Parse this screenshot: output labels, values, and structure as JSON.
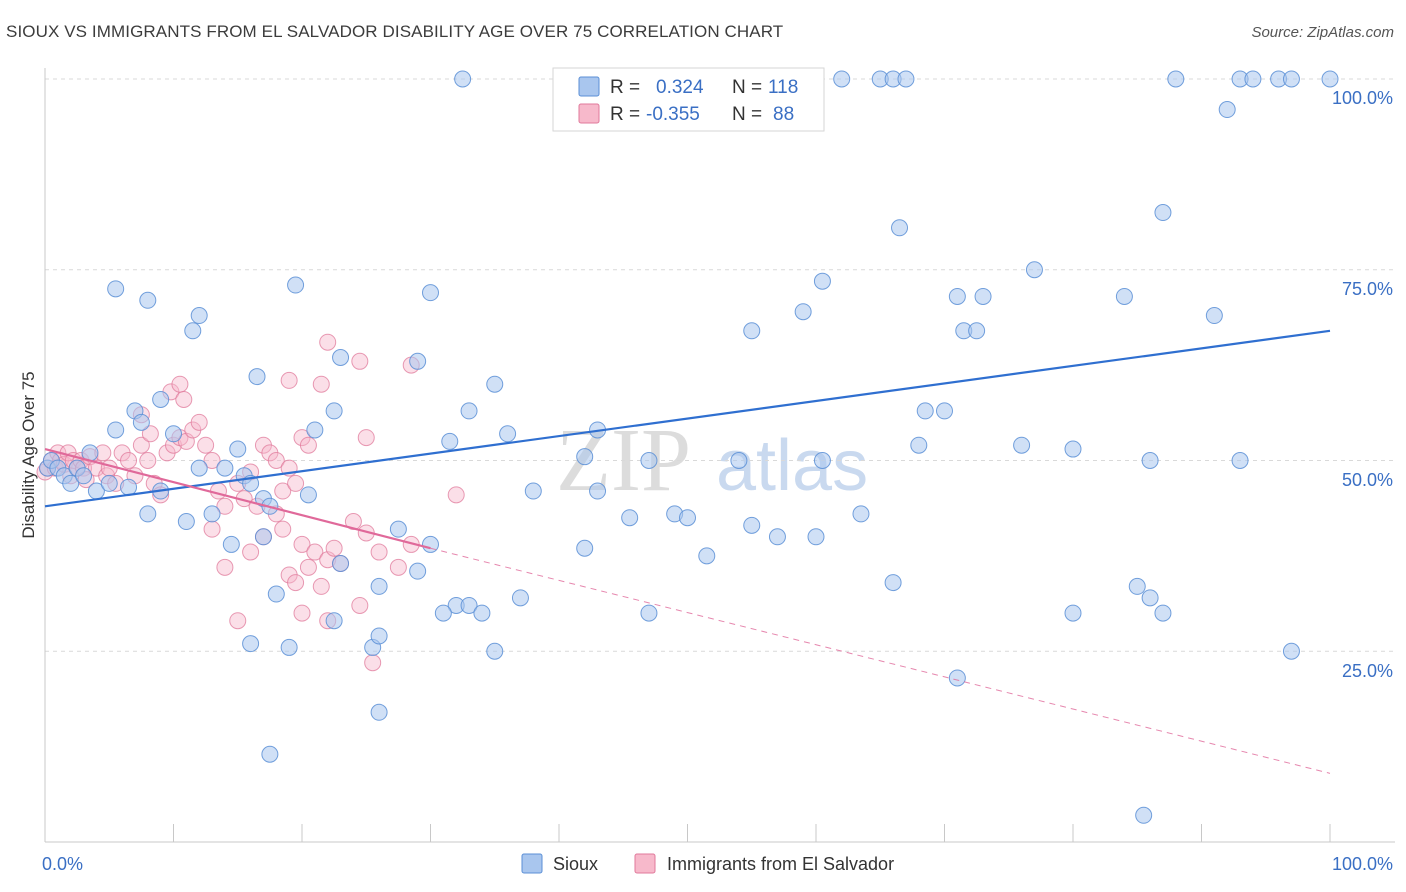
{
  "title": "SIOUX VS IMMIGRANTS FROM EL SALVADOR DISABILITY AGE OVER 75 CORRELATION CHART",
  "source": "Source: ZipAtlas.com",
  "watermark": {
    "zip": "ZIP",
    "atlas": "atlas"
  },
  "legend_box": {
    "rows": [
      {
        "r_label": "R =",
        "r_value": "0.324",
        "n_label": "N =",
        "n_value": "118",
        "color": "#a9c6ee",
        "stroke": "#5b8fd6"
      },
      {
        "r_label": "R =",
        "r_value": "-0.355",
        "n_label": "N =",
        "n_value": "88",
        "color": "#f7b9cb",
        "stroke": "#e0799b"
      }
    ]
  },
  "bottom_legend": [
    {
      "label": "Sioux",
      "color": "#a9c6ee",
      "stroke": "#5b8fd6"
    },
    {
      "label": "Immigrants from El Salvador",
      "color": "#f7b9cb",
      "stroke": "#e0799b"
    }
  ],
  "colors": {
    "blue_line": "#2f6fd0",
    "pink_line": "#e0699a",
    "blue_fill": "#a9c6ee",
    "blue_stroke": "#5b8fd6",
    "pink_fill": "#f7b9cb",
    "pink_stroke": "#e0799b",
    "grid": "#d9d9d9"
  },
  "chart_data": {
    "type": "scatter",
    "title": "SIOUX VS IMMIGRANTS FROM EL SALVADOR DISABILITY AGE OVER 75 CORRELATION CHART",
    "xlabel": "",
    "ylabel": "Disability Age Over 75",
    "xlim": [
      0,
      100
    ],
    "ylim": [
      0,
      100
    ],
    "x_tick_labels": [
      "0.0%",
      "100.0%"
    ],
    "y_tick_labels": [
      "100.0%",
      "75.0%",
      "50.0%",
      "25.0%"
    ],
    "y_ticks": [
      100,
      75,
      50,
      25
    ],
    "grid": true,
    "legend_position": "top-center",
    "series": [
      {
        "name": "Sioux",
        "r": 0.324,
        "n": 118,
        "trend": {
          "x": [
            0,
            100
          ],
          "y": [
            44,
            67
          ]
        },
        "points": [
          [
            32.5,
            100
          ],
          [
            45.5,
            100
          ],
          [
            62,
            100
          ],
          [
            65,
            100
          ],
          [
            66,
            100
          ],
          [
            67,
            100
          ],
          [
            88,
            100
          ],
          [
            93,
            100
          ],
          [
            94,
            100
          ],
          [
            96,
            100
          ],
          [
            97,
            100
          ],
          [
            100,
            100
          ],
          [
            92,
            96
          ],
          [
            66.5,
            80.5
          ],
          [
            87,
            82.5
          ],
          [
            77,
            75
          ],
          [
            60.5,
            73.5
          ],
          [
            71,
            71.5
          ],
          [
            73,
            71.5
          ],
          [
            84,
            71.5
          ],
          [
            59,
            69.5
          ],
          [
            91,
            69
          ],
          [
            5.5,
            72.5
          ],
          [
            8,
            71
          ],
          [
            19.5,
            73
          ],
          [
            30,
            72
          ],
          [
            12,
            69
          ],
          [
            11.5,
            67
          ],
          [
            55,
            67
          ],
          [
            71.5,
            67
          ],
          [
            72.5,
            67
          ],
          [
            16.5,
            61
          ],
          [
            23,
            63.5
          ],
          [
            29,
            63
          ],
          [
            35,
            60
          ],
          [
            7,
            56.5
          ],
          [
            9,
            58
          ],
          [
            22.5,
            56.5
          ],
          [
            33,
            56.5
          ],
          [
            68.5,
            56.5
          ],
          [
            70,
            56.5
          ],
          [
            5.5,
            54
          ],
          [
            7.5,
            55
          ],
          [
            10,
            53.5
          ],
          [
            21,
            54
          ],
          [
            36,
            53.5
          ],
          [
            43,
            54
          ],
          [
            15,
            51.5
          ],
          [
            31.5,
            52.5
          ],
          [
            42,
            50.5
          ],
          [
            47,
            50
          ],
          [
            54,
            50
          ],
          [
            60.5,
            50
          ],
          [
            68,
            52
          ],
          [
            76,
            52
          ],
          [
            80,
            51.5
          ],
          [
            86,
            50
          ],
          [
            93,
            50
          ],
          [
            3.5,
            51
          ],
          [
            12,
            49
          ],
          [
            14,
            49
          ],
          [
            15.5,
            48
          ],
          [
            16,
            47
          ],
          [
            38,
            46
          ],
          [
            43,
            46
          ],
          [
            0.2,
            49
          ],
          [
            0.5,
            50
          ],
          [
            1,
            49
          ],
          [
            1.5,
            48
          ],
          [
            2,
            47
          ],
          [
            2.5,
            49
          ],
          [
            3,
            48
          ],
          [
            4,
            46
          ],
          [
            5,
            47
          ],
          [
            6.5,
            46.5
          ],
          [
            9,
            46
          ],
          [
            11,
            42
          ],
          [
            13,
            43
          ],
          [
            17,
            45
          ],
          [
            17.5,
            44
          ],
          [
            20.5,
            45.5
          ],
          [
            27.5,
            41
          ],
          [
            30,
            39
          ],
          [
            42,
            38.5
          ],
          [
            45.5,
            42.5
          ],
          [
            49,
            43
          ],
          [
            50,
            42.5
          ],
          [
            51.5,
            37.5
          ],
          [
            55,
            41.5
          ],
          [
            57,
            40
          ],
          [
            60,
            40
          ],
          [
            63.5,
            43
          ],
          [
            8,
            43
          ],
          [
            14.5,
            39
          ],
          [
            17,
            40
          ],
          [
            18,
            32.5
          ],
          [
            23,
            36.5
          ],
          [
            26,
            33.5
          ],
          [
            29,
            35.5
          ],
          [
            32,
            31
          ],
          [
            33,
            31
          ],
          [
            34,
            30
          ],
          [
            37,
            32
          ],
          [
            47,
            30
          ],
          [
            31,
            30
          ],
          [
            86,
            32
          ],
          [
            85,
            33.5
          ],
          [
            80,
            30
          ],
          [
            87,
            30
          ],
          [
            97,
            25
          ],
          [
            66,
            34
          ],
          [
            22.5,
            29
          ],
          [
            16,
            26
          ],
          [
            19,
            25.5
          ],
          [
            25.5,
            25.5
          ],
          [
            35,
            25
          ],
          [
            26,
            27
          ],
          [
            26,
            17
          ],
          [
            71,
            21.5
          ],
          [
            17.5,
            11.5
          ],
          [
            85.5,
            3.5
          ]
        ]
      },
      {
        "name": "Immigrants from El Salvador",
        "r": -0.355,
        "n": 88,
        "trend_solid": {
          "x": [
            0,
            30
          ],
          "y": [
            51.5,
            38.5
          ]
        },
        "trend_dashed": {
          "x": [
            30,
            100
          ],
          "y": [
            38.5,
            9
          ]
        },
        "points": [
          [
            0,
            48.5
          ],
          [
            0.2,
            49
          ],
          [
            0.5,
            50
          ],
          [
            0.8,
            49
          ],
          [
            1,
            51
          ],
          [
            1.2,
            50
          ],
          [
            1.5,
            49.5
          ],
          [
            1.8,
            51
          ],
          [
            2,
            48
          ],
          [
            2.2,
            50
          ],
          [
            2.5,
            49
          ],
          [
            2.8,
            50
          ],
          [
            3,
            49
          ],
          [
            3.2,
            47.5
          ],
          [
            3.5,
            50.5
          ],
          [
            4,
            49
          ],
          [
            4.5,
            51
          ],
          [
            4.8,
            48
          ],
          [
            5,
            49
          ],
          [
            5.5,
            47
          ],
          [
            6,
            51
          ],
          [
            6.5,
            50
          ],
          [
            7,
            48
          ],
          [
            7.5,
            52
          ],
          [
            8,
            50
          ],
          [
            8.5,
            47
          ],
          [
            9,
            45.5
          ],
          [
            9.5,
            51
          ],
          [
            10,
            52
          ],
          [
            10.5,
            53
          ],
          [
            11,
            52.5
          ],
          [
            11.5,
            54
          ],
          [
            7.5,
            56
          ],
          [
            8.2,
            53.5
          ],
          [
            9.8,
            59
          ],
          [
            10.5,
            60
          ],
          [
            10.8,
            58
          ],
          [
            12,
            55
          ],
          [
            12.5,
            52
          ],
          [
            13,
            50
          ],
          [
            13.5,
            46
          ],
          [
            14,
            44
          ],
          [
            15,
            47
          ],
          [
            15.5,
            45
          ],
          [
            16,
            48.5
          ],
          [
            16.5,
            44
          ],
          [
            17,
            52
          ],
          [
            17.5,
            51
          ],
          [
            18,
            50
          ],
          [
            18.5,
            46
          ],
          [
            19,
            49
          ],
          [
            19.5,
            47
          ],
          [
            20,
            53
          ],
          [
            20.5,
            52
          ],
          [
            13,
            41
          ],
          [
            14,
            36
          ],
          [
            15,
            29
          ],
          [
            16,
            38
          ],
          [
            17,
            40
          ],
          [
            18,
            43
          ],
          [
            18.5,
            41
          ],
          [
            19,
            35
          ],
          [
            19.5,
            34
          ],
          [
            20,
            39
          ],
          [
            20.5,
            36
          ],
          [
            21,
            38
          ],
          [
            21.5,
            33.5
          ],
          [
            22,
            37
          ],
          [
            22.5,
            38.5
          ],
          [
            23,
            36.5
          ],
          [
            24,
            42
          ],
          [
            25,
            40.5
          ],
          [
            26,
            38
          ],
          [
            27.5,
            36
          ],
          [
            28.5,
            39
          ],
          [
            19,
            60.5
          ],
          [
            21.5,
            60
          ],
          [
            22,
            65.5
          ],
          [
            24.5,
            63
          ],
          [
            28.5,
            62.5
          ],
          [
            25,
            53
          ],
          [
            32,
            45.5
          ],
          [
            20,
            30
          ],
          [
            22,
            29
          ],
          [
            24.5,
            31
          ],
          [
            25.5,
            23.5
          ]
        ]
      }
    ]
  }
}
